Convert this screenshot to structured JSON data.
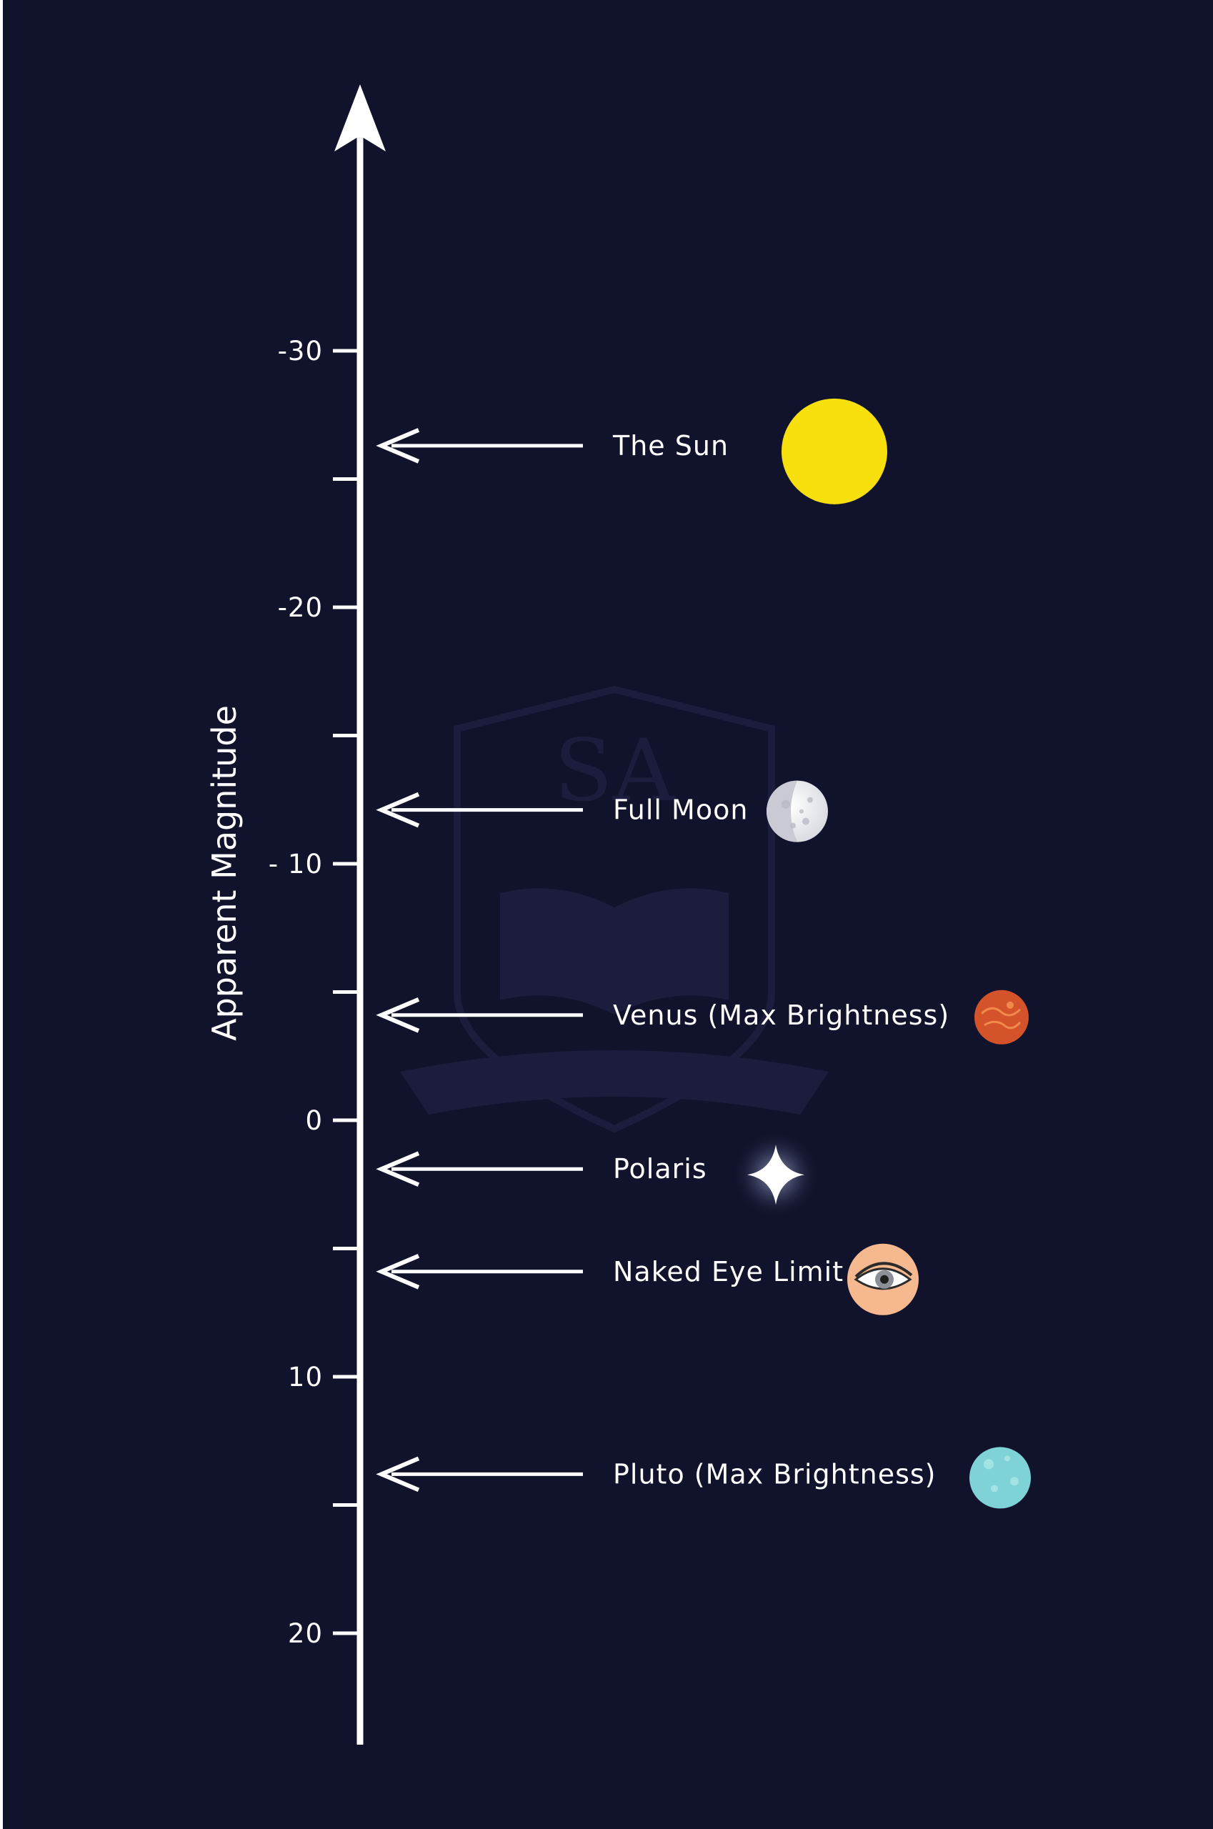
{
  "colors": {
    "background": "#11122c",
    "foreground": "#ffffff",
    "sun": "#f7e00d",
    "moon": "#f3f3f5",
    "venus": "#d4532a",
    "eye_skin": "#f6b98f",
    "pluto": "#7fd3d6",
    "watermark": "#1c1d3d"
  },
  "axis": {
    "title": "Apparent Magnitude",
    "direction": "up = brighter (more negative magnitude)",
    "range": [
      -30,
      20
    ],
    "labeled_ticks": [
      {
        "value": -30,
        "label": "-30"
      },
      {
        "value": -20,
        "label": "-20"
      },
      {
        "value": -10,
        "label": "- 10"
      },
      {
        "value": 0,
        "label": "0"
      },
      {
        "value": 10,
        "label": "10"
      },
      {
        "value": 20,
        "label": "20"
      }
    ],
    "minor_ticks": [
      -25,
      -15,
      -5,
      5,
      15
    ]
  },
  "objects": [
    {
      "name": "The Sun",
      "magnitude": -26.3,
      "icon": "sun-icon"
    },
    {
      "name": "Full Moon",
      "magnitude": -12.1,
      "icon": "moon-icon"
    },
    {
      "name": "Venus (Max Brightness)",
      "magnitude": -4.1,
      "icon": "venus-icon"
    },
    {
      "name": "Polaris",
      "magnitude": 1.9,
      "icon": "star-icon"
    },
    {
      "name": "Naked Eye Limit",
      "magnitude": 5.9,
      "icon": "eye-icon"
    },
    {
      "name": "Pluto (Max Brightness)",
      "magnitude": 13.8,
      "icon": "pluto-icon"
    }
  ],
  "watermark": {
    "text": "SA"
  }
}
